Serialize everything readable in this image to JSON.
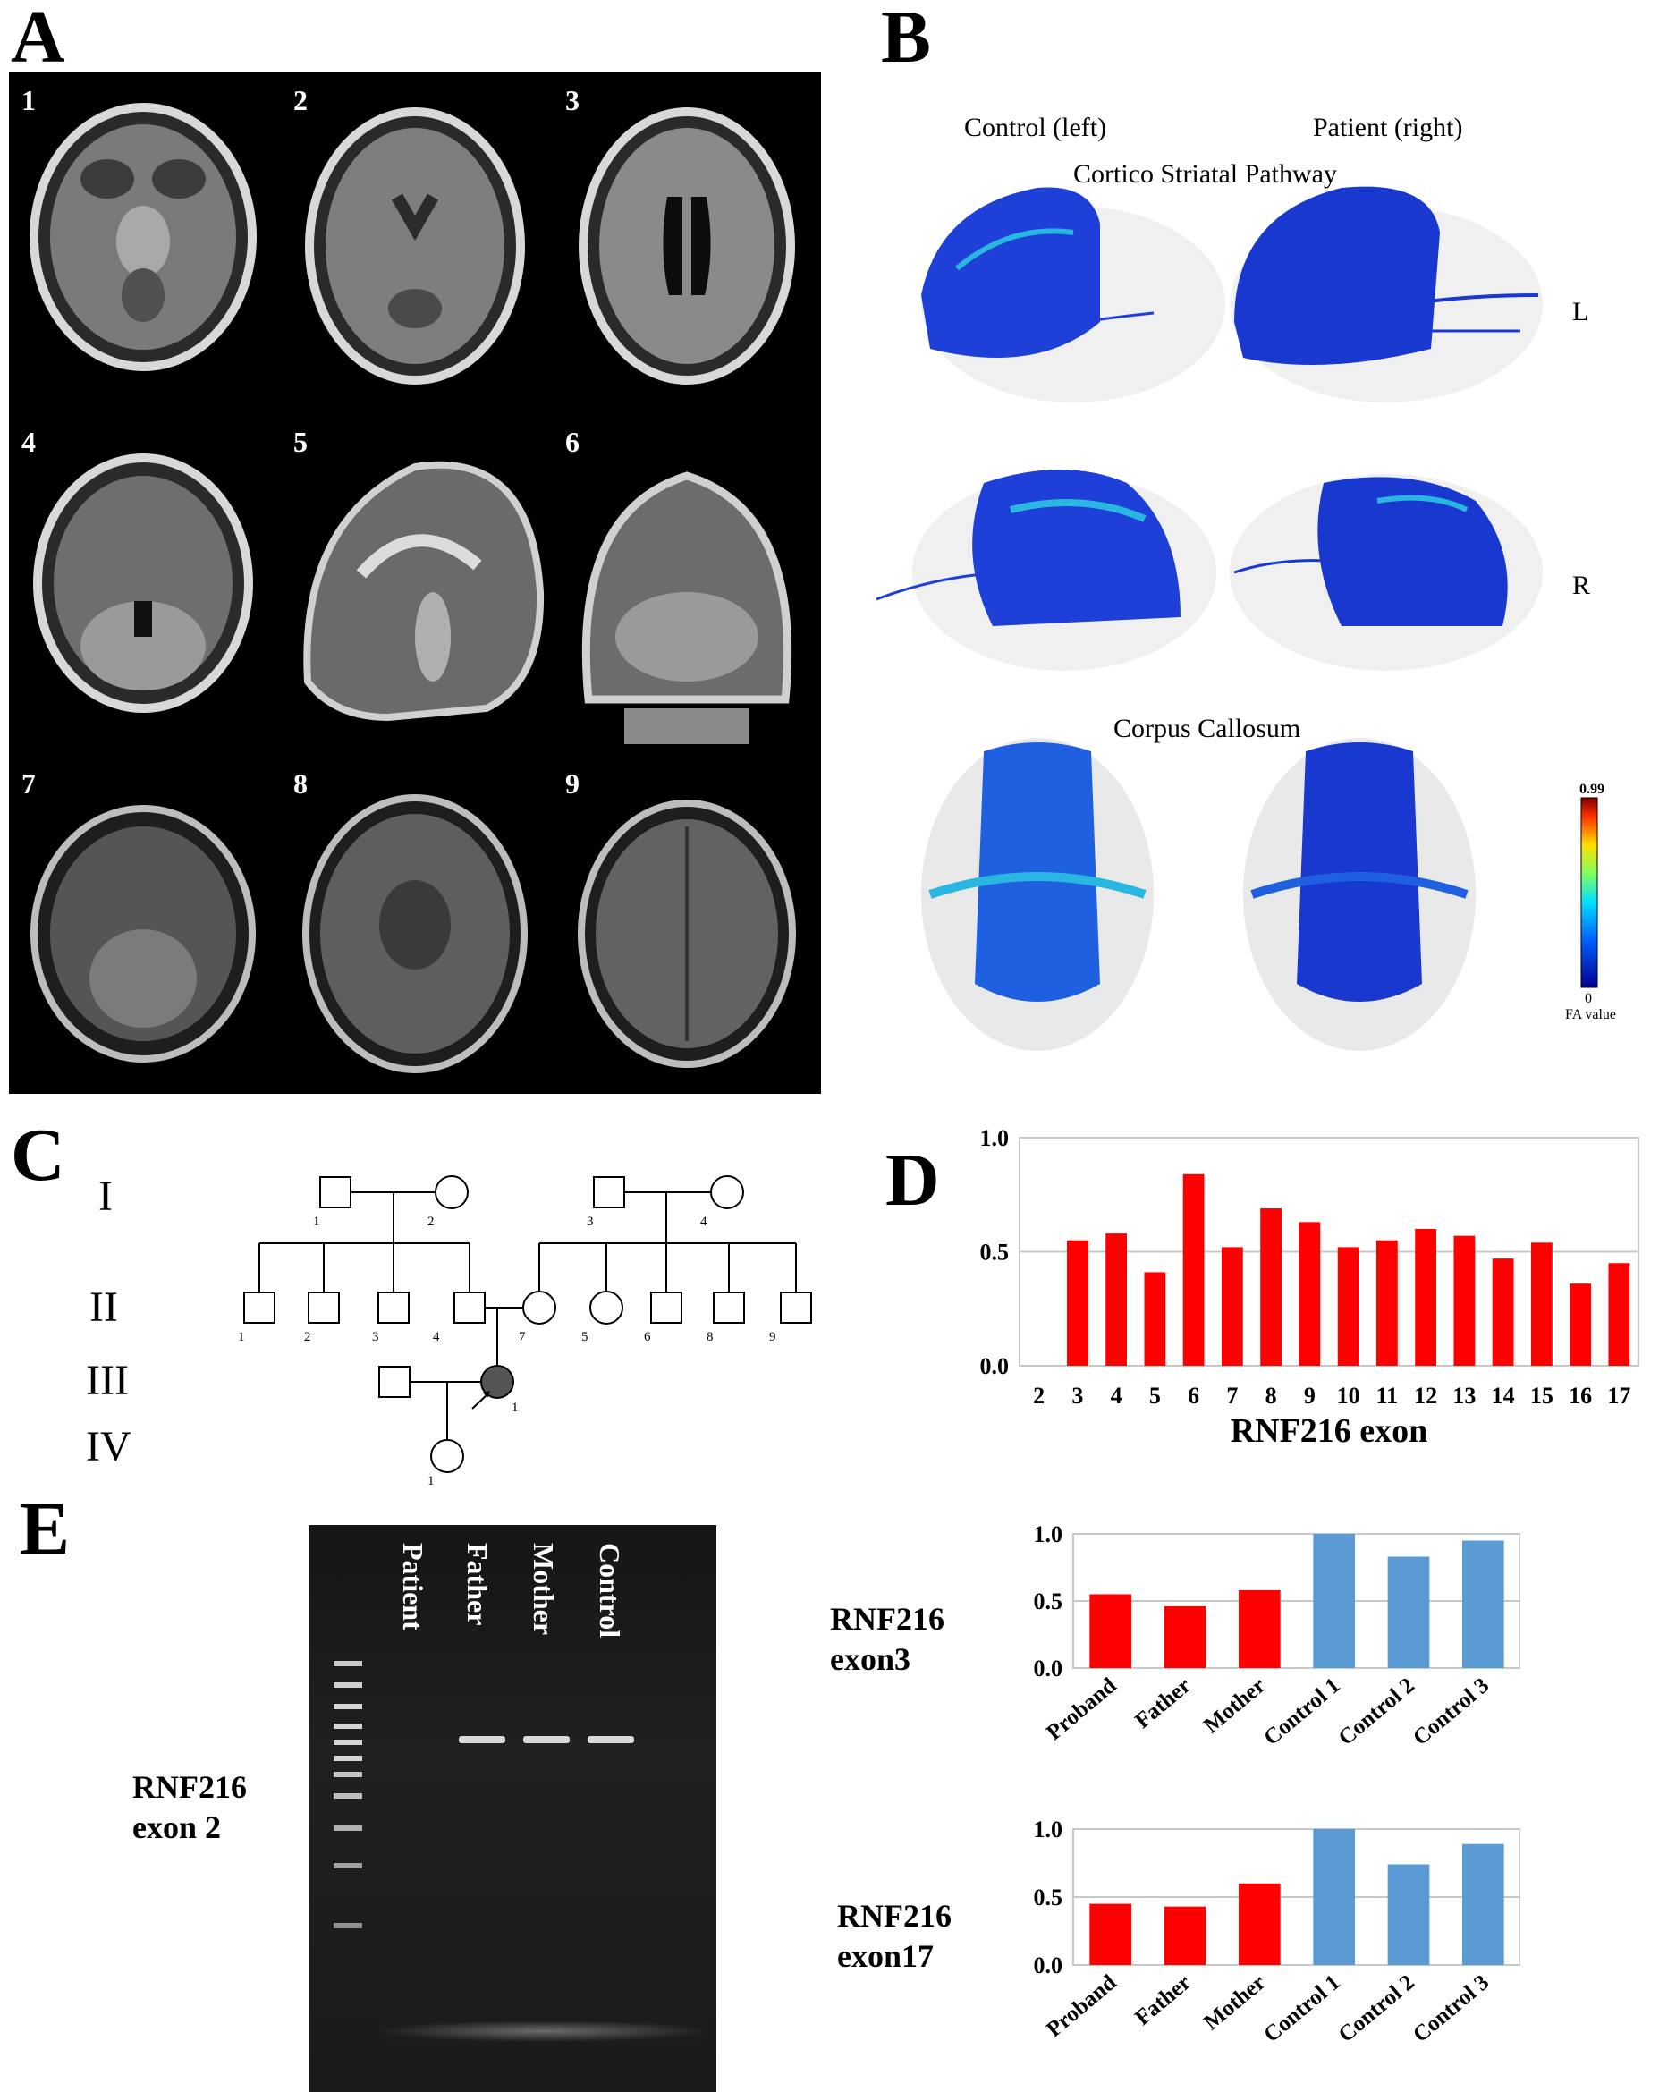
{
  "panels": {
    "A": "A",
    "B": "B",
    "C": "C",
    "D": "D",
    "E": "E"
  },
  "panelA": {
    "numbers": [
      "1",
      "2",
      "3",
      "4",
      "5",
      "6",
      "7",
      "8",
      "9"
    ]
  },
  "panelB": {
    "control_label": "Control (left)",
    "patient_label": "Patient (right)",
    "cortico_title": "Cortico Striatal Pathway",
    "side_L": "L",
    "side_R": "R",
    "corpus_title": "Corpus Callosum",
    "colorbar": {
      "max": "0.99",
      "min": "0",
      "label": "FA value"
    },
    "colors": {
      "tract_blue": "#1f3fd6",
      "tract_cyan": "#29b6e0"
    }
  },
  "panelC": {
    "generations": [
      "I",
      "II",
      "III",
      "IV"
    ],
    "gen1_ids": [
      "1",
      "2",
      "3",
      "4"
    ],
    "gen2_ids": [
      "1",
      "2",
      "3",
      "4",
      "7",
      "5",
      "6",
      "8",
      "9"
    ],
    "gen3_ids": [
      "1"
    ],
    "gen4_ids": [
      "1"
    ]
  },
  "panelE": {
    "gel_lanes": [
      "Patient",
      "Father",
      "Mother",
      "Control"
    ],
    "gel_label": "RNF216\nexon 2",
    "exon3_label": "RNF216\nexon3",
    "exon17_label": "RNF216\nexon17"
  },
  "chart_data": [
    {
      "id": "D",
      "type": "bar",
      "xlabel": "RNF216 exon",
      "ylabel": "",
      "categories": [
        "2",
        "3",
        "4",
        "5",
        "6",
        "7",
        "8",
        "9",
        "10",
        "11",
        "12",
        "13",
        "14",
        "15",
        "16",
        "17"
      ],
      "values": [
        0.0,
        0.55,
        0.58,
        0.41,
        0.84,
        0.52,
        0.69,
        0.63,
        0.52,
        0.55,
        0.6,
        0.57,
        0.47,
        0.54,
        0.36,
        0.45
      ],
      "ylim": [
        0,
        1.0
      ],
      "yticks": [
        "0.0",
        "0.5",
        "1.0"
      ],
      "grid": true,
      "color": "#ff0000"
    },
    {
      "id": "E-exon3",
      "type": "bar",
      "categories": [
        "Proband",
        "Father",
        "Mother",
        "Control 1",
        "Control 2",
        "Control 3"
      ],
      "values": [
        0.55,
        0.46,
        0.58,
        1.0,
        0.83,
        0.95
      ],
      "colors": [
        "#ff0000",
        "#ff0000",
        "#ff0000",
        "#5b9bd5",
        "#5b9bd5",
        "#5b9bd5"
      ],
      "ylim": [
        0,
        1.0
      ],
      "yticks": [
        "0.0",
        "0.5",
        "1.0"
      ],
      "grid": true
    },
    {
      "id": "E-exon17",
      "type": "bar",
      "categories": [
        "Proband",
        "Father",
        "Mother",
        "Control 1",
        "Control 2",
        "Control 3"
      ],
      "values": [
        0.45,
        0.43,
        0.6,
        1.0,
        0.74,
        0.89
      ],
      "colors": [
        "#ff0000",
        "#ff0000",
        "#ff0000",
        "#5b9bd5",
        "#5b9bd5",
        "#5b9bd5"
      ],
      "ylim": [
        0,
        1.0
      ],
      "yticks": [
        "0.0",
        "0.5",
        "1.0"
      ],
      "grid": true
    }
  ]
}
